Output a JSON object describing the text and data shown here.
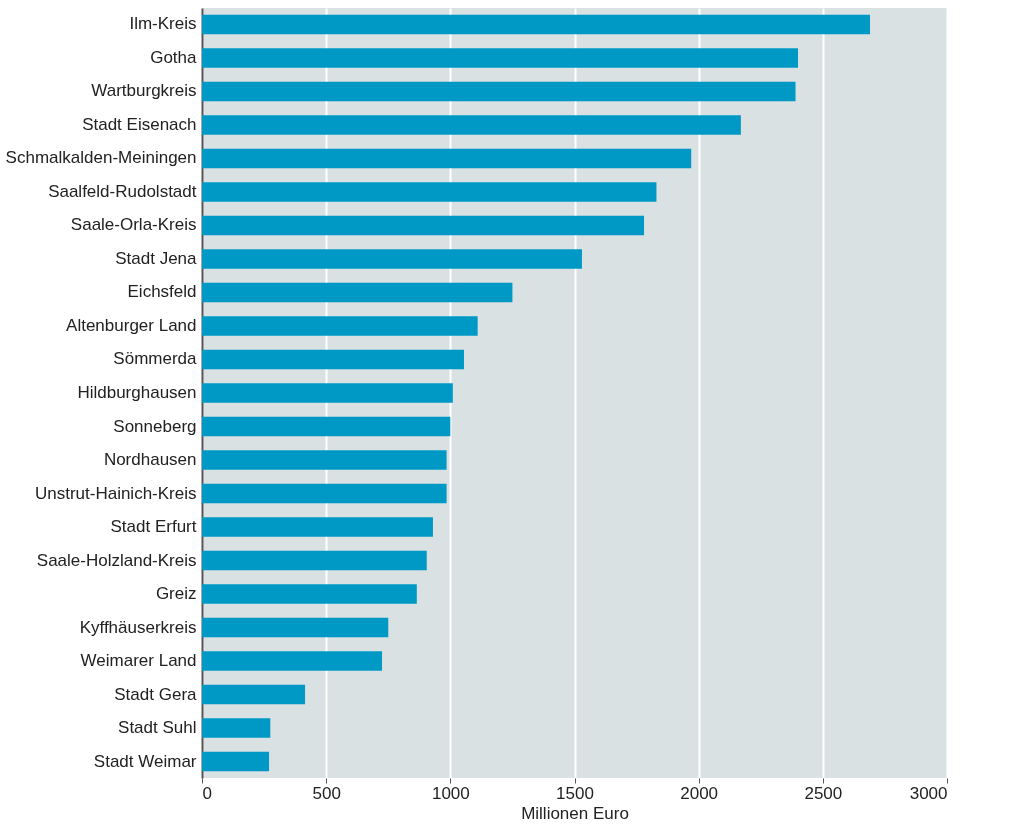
{
  "chart_data": {
    "type": "bar",
    "orientation": "horizontal",
    "xlabel": "Millionen Euro",
    "categories": [
      "Ilm-Kreis",
      "Gotha",
      "Wartburgkreis",
      "Stadt Eisenach",
      "Schmalkalden-Meiningen",
      "Saalfeld-Rudolstadt",
      "Saale-Orla-Kreis",
      "Stadt Jena",
      "Eichsfeld",
      "Altenburger Land",
      "Sömmerda",
      "Hildburghausen",
      "Sonneberg",
      "Nordhausen",
      "Unstrut-Hainich-Kreis",
      "Stadt Erfurt",
      "Saale-Holzland-Kreis",
      "Greiz",
      "Kyffhäuserkreis",
      "Weimarer Land",
      "Stadt Gera",
      "Stadt Suhl",
      "Stadt Weimar"
    ],
    "values": [
      2690,
      2400,
      2390,
      2170,
      1970,
      1830,
      1780,
      1530,
      1250,
      1110,
      1055,
      1010,
      1000,
      985,
      985,
      930,
      905,
      865,
      750,
      725,
      415,
      275,
      270
    ],
    "color": "#0099c6",
    "xlim": [
      0,
      3000
    ],
    "xticks": [
      0,
      500,
      1000,
      1500,
      2000,
      2500,
      3000
    ],
    "grid": "x"
  }
}
